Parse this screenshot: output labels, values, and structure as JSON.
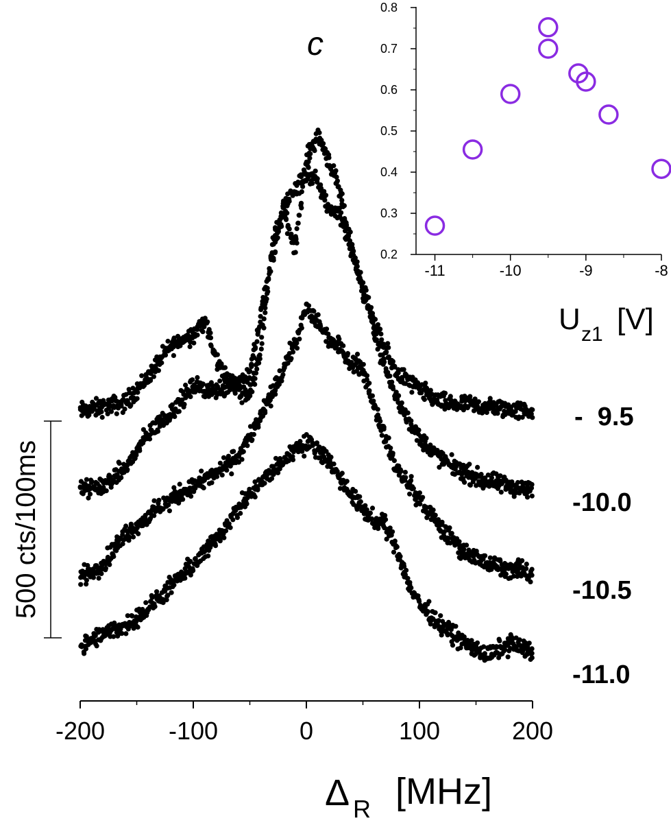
{
  "chart_data": [
    {
      "type": "scatter",
      "description": "Main plot: four stacked resonance spectra (vertically offset for clarity)",
      "xlabel": "Δ",
      "xlabel_subscript": "R",
      "xlabel_unit": "[MHz]",
      "xlim": [
        -200,
        200
      ],
      "x_ticks": [
        -200,
        -100,
        0,
        100,
        200
      ],
      "x_tick_labels": [
        "-200",
        "-100",
        "0",
        "100",
        "200"
      ],
      "scale_bar_label": "500 cts/100ms",
      "series": [
        {
          "name": "-  9.5",
          "values_description": "x in MHz, y in counts (arbitrary offset)",
          "points": [
            [
              -200,
              180
            ],
            [
              -180,
              190
            ],
            [
              -160,
              200
            ],
            [
              -140,
              260
            ],
            [
              -120,
              330
            ],
            [
              -100,
              360
            ],
            [
              -90,
              390
            ],
            [
              -80,
              300
            ],
            [
              -70,
              260
            ],
            [
              -60,
              230
            ],
            [
              -50,
              220
            ],
            [
              -40,
              330
            ],
            [
              -30,
              570
            ],
            [
              -20,
              640
            ],
            [
              -10,
              560
            ],
            [
              0,
              760
            ],
            [
              10,
              820
            ],
            [
              20,
              760
            ],
            [
              30,
              680
            ],
            [
              40,
              560
            ],
            [
              50,
              460
            ],
            [
              60,
              380
            ],
            [
              70,
              320
            ],
            [
              80,
              270
            ],
            [
              100,
              230
            ],
            [
              120,
              200
            ],
            [
              140,
              195
            ],
            [
              160,
              190
            ],
            [
              180,
              185
            ],
            [
              200,
              180
            ]
          ]
        },
        {
          "name": "-10.0",
          "points": [
            [
              -200,
              150
            ],
            [
              -180,
              160
            ],
            [
              -160,
              200
            ],
            [
              -140,
              280
            ],
            [
              -120,
              330
            ],
            [
              -100,
              390
            ],
            [
              -80,
              380
            ],
            [
              -60,
              400
            ],
            [
              -50,
              420
            ],
            [
              -40,
              560
            ],
            [
              -30,
              680
            ],
            [
              -20,
              810
            ],
            [
              -10,
              840
            ],
            [
              0,
              880
            ],
            [
              10,
              860
            ],
            [
              20,
              800
            ],
            [
              30,
              790
            ],
            [
              40,
              700
            ],
            [
              50,
              620
            ],
            [
              60,
              520
            ],
            [
              70,
              430
            ],
            [
              80,
              360
            ],
            [
              100,
              270
            ],
            [
              120,
              220
            ],
            [
              140,
              190
            ],
            [
              160,
              170
            ],
            [
              180,
              160
            ],
            [
              200,
              150
            ]
          ]
        },
        {
          "name": "-10.5",
          "points": [
            [
              -200,
              140
            ],
            [
              -180,
              170
            ],
            [
              -160,
              240
            ],
            [
              -140,
              280
            ],
            [
              -120,
              320
            ],
            [
              -100,
              350
            ],
            [
              -80,
              380
            ],
            [
              -60,
              420
            ],
            [
              -40,
              510
            ],
            [
              -20,
              620
            ],
            [
              -10,
              680
            ],
            [
              0,
              760
            ],
            [
              10,
              730
            ],
            [
              20,
              690
            ],
            [
              30,
              670
            ],
            [
              40,
              640
            ],
            [
              50,
              620
            ],
            [
              60,
              540
            ],
            [
              70,
              460
            ],
            [
              80,
              390
            ],
            [
              100,
              320
            ],
            [
              120,
              250
            ],
            [
              140,
              200
            ],
            [
              160,
              170
            ],
            [
              180,
              160
            ],
            [
              200,
              150
            ]
          ]
        },
        {
          "name": "-11.0",
          "points": [
            [
              -200,
              130
            ],
            [
              -180,
              160
            ],
            [
              -160,
              180
            ],
            [
              -140,
              220
            ],
            [
              -120,
              270
            ],
            [
              -100,
              320
            ],
            [
              -80,
              380
            ],
            [
              -60,
              450
            ],
            [
              -40,
              510
            ],
            [
              -20,
              560
            ],
            [
              -10,
              590
            ],
            [
              0,
              600
            ],
            [
              10,
              590
            ],
            [
              20,
              560
            ],
            [
              30,
              520
            ],
            [
              40,
              480
            ],
            [
              50,
              450
            ],
            [
              60,
              420
            ],
            [
              70,
              410
            ],
            [
              80,
              360
            ],
            [
              90,
              280
            ],
            [
              100,
              230
            ],
            [
              120,
              180
            ],
            [
              140,
              140
            ],
            [
              160,
              110
            ],
            [
              180,
              140
            ],
            [
              200,
              120
            ]
          ]
        }
      ],
      "series_labels": [
        "-  9.5",
        "-10.0",
        "-10.5",
        "-11.0"
      ]
    },
    {
      "type": "scatter",
      "description": "Inset",
      "title": "c",
      "xlabel": "U",
      "xlabel_subscript": "z1",
      "xlabel_unit": "[V]",
      "xlim": [
        -11.25,
        -8
      ],
      "ylim": [
        0.2,
        0.8
      ],
      "x_ticks": [
        -11,
        -10,
        -9,
        -8
      ],
      "x_tick_labels": [
        "-11",
        "-10",
        "-9",
        "-8"
      ],
      "y_ticks": [
        0.2,
        0.3,
        0.4,
        0.5,
        0.6,
        0.7,
        0.8
      ],
      "y_tick_labels": [
        "0.2",
        "0.3",
        "0.4",
        "0.5",
        "0.6",
        "0.7",
        "0.8"
      ],
      "marker_color": "#8a2be2",
      "x": [
        -11,
        -10.5,
        -10,
        -9.5,
        -9.5,
        -9.1,
        -9.0,
        -8.7,
        -8.0
      ],
      "y": [
        0.27,
        0.455,
        0.59,
        0.7,
        0.752,
        0.64,
        0.62,
        0.54,
        0.408
      ]
    }
  ]
}
